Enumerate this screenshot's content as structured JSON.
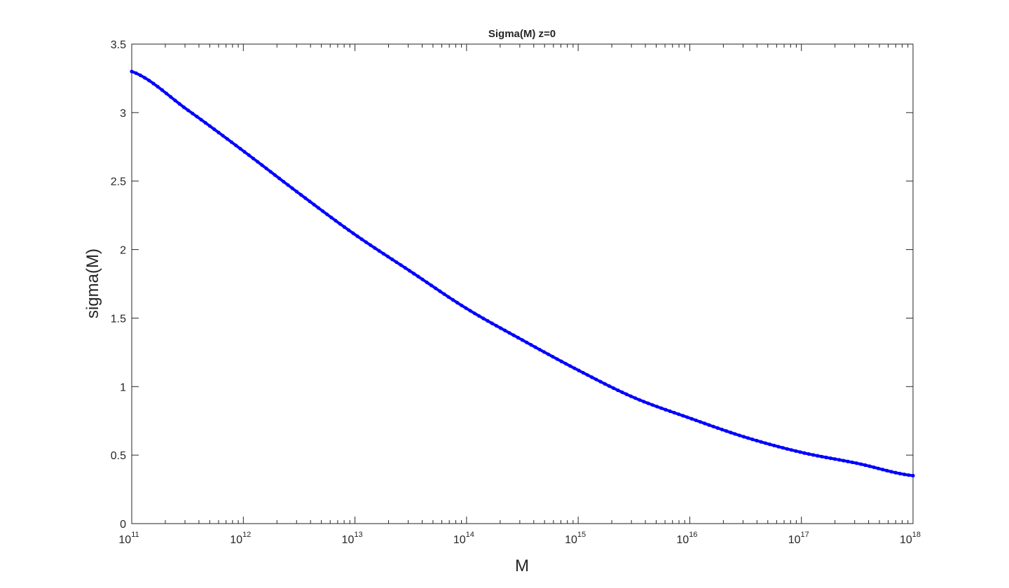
{
  "chart_data": {
    "type": "scatter",
    "title": "Sigma(M) z=0",
    "xlabel": "M",
    "ylabel": "sigma(M)",
    "xscale": "log",
    "xlim": [
      100000000000.0,
      1e+18
    ],
    "ylim": [
      0,
      3.5
    ],
    "grid": false,
    "legend": "none",
    "line_color": "#0000ff",
    "xticks": [
      {
        "base": "10",
        "exp": "11",
        "value": 100000000000.0
      },
      {
        "base": "10",
        "exp": "12",
        "value": 1000000000000.0
      },
      {
        "base": "10",
        "exp": "13",
        "value": 10000000000000.0
      },
      {
        "base": "10",
        "exp": "14",
        "value": 100000000000000.0
      },
      {
        "base": "10",
        "exp": "15",
        "value": 1000000000000000.0
      },
      {
        "base": "10",
        "exp": "16",
        "value": 1e+16
      },
      {
        "base": "10",
        "exp": "17",
        "value": 1e+17
      },
      {
        "base": "10",
        "exp": "18",
        "value": 1e+18
      }
    ],
    "yticks": [
      {
        "label": "0",
        "value": 0
      },
      {
        "label": "0.5",
        "value": 0.5
      },
      {
        "label": "1",
        "value": 1
      },
      {
        "label": "1.5",
        "value": 1.5
      },
      {
        "label": "2",
        "value": 2
      },
      {
        "label": "2.5",
        "value": 2.5
      },
      {
        "label": "3",
        "value": 3
      },
      {
        "label": "3.5",
        "value": 3.5
      }
    ],
    "series": [
      {
        "x": [
          100000000000.0,
          316000000000.0,
          1000000000000.0,
          3160000000000.0,
          10000000000000.0,
          31600000000000.0,
          100000000000000.0,
          316000000000000.0,
          1000000000000000.0,
          3160000000000000.0,
          1e+16,
          3.16e+16,
          1e+17,
          3.16e+17,
          1e+18
        ],
        "y": [
          3.3,
          3.02,
          2.72,
          2.41,
          2.11,
          1.84,
          1.57,
          1.34,
          1.12,
          0.92,
          0.77,
          0.63,
          0.52,
          0.44,
          0.35
        ]
      }
    ]
  }
}
